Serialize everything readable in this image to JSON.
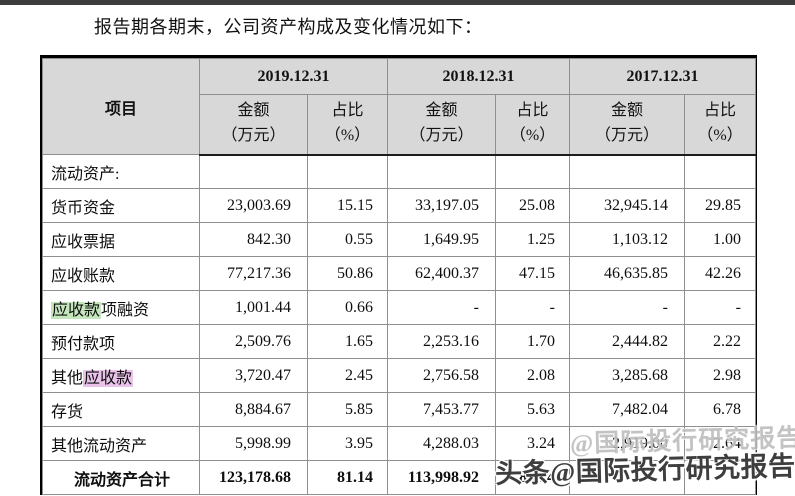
{
  "page": {
    "intro_text": "报告期各期末，公司资产构成及变化情况如下："
  },
  "table": {
    "item_header": "项目",
    "periods": [
      "2019.12.31",
      "2018.12.31",
      "2017.12.31"
    ],
    "amount_label": "金额",
    "amount_unit": "（万元）",
    "ratio_label": "占比",
    "ratio_unit": "（%）",
    "rows": [
      {
        "label": [
          {
            "t": "流动资产:"
          }
        ],
        "cells": [
          "",
          "",
          "",
          "",
          "",
          ""
        ]
      },
      {
        "label": [
          {
            "t": "货币资金"
          }
        ],
        "cells": [
          "23,003.69",
          "15.15",
          "33,197.05",
          "25.08",
          "32,945.14",
          "29.85"
        ]
      },
      {
        "label": [
          {
            "t": "应收票据"
          }
        ],
        "cells": [
          "842.30",
          "0.55",
          "1,649.95",
          "1.25",
          "1,103.12",
          "1.00"
        ]
      },
      {
        "label": [
          {
            "t": "应收账款"
          }
        ],
        "cells": [
          "77,217.36",
          "50.86",
          "62,400.37",
          "47.15",
          "46,635.85",
          "42.26"
        ]
      },
      {
        "label": [
          {
            "t": "应收款",
            "h": "green"
          },
          {
            "t": "项融资"
          }
        ],
        "cells": [
          "1,001.44",
          "0.66",
          "-",
          "-",
          "-",
          "-"
        ]
      },
      {
        "label": [
          {
            "t": "预付款项"
          }
        ],
        "cells": [
          "2,509.76",
          "1.65",
          "2,253.16",
          "1.70",
          "2,444.82",
          "2.22"
        ]
      },
      {
        "label": [
          {
            "t": "其他"
          },
          {
            "t": "应收款",
            "h": "pink"
          }
        ],
        "cells": [
          "3,720.47",
          "2.45",
          "2,756.58",
          "2.08",
          "3,285.68",
          "2.98"
        ]
      },
      {
        "label": [
          {
            "t": "存货"
          }
        ],
        "cells": [
          "8,884.67",
          "5.85",
          "7,453.77",
          "5.63",
          "7,482.04",
          "6.78"
        ]
      },
      {
        "label": [
          {
            "t": "其他流动资产"
          }
        ],
        "cells": [
          "5,998.99",
          "3.95",
          "4,288.03",
          "3.24",
          "2,919.00",
          "2.64"
        ]
      },
      {
        "label": [
          {
            "t": "流动资产合计"
          }
        ],
        "cells": [
          "123,178.68",
          "81.14",
          "113,998.92",
          "86.14",
          "",
          ""
        ],
        "bold": true,
        "indent": true
      }
    ]
  },
  "watermark": {
    "main": "头条@国际投行研究报告",
    "ghost": "@国际投行研究报告"
  },
  "colors": {
    "highlight_green": "#c5e6bd",
    "highlight_pink": "#eac3ea",
    "header_bg": "#d8d8d8",
    "top_bar": "#3c3c3c",
    "watermark_main": "#3e3e3e",
    "watermark_ghost": "#bdbdbd"
  }
}
